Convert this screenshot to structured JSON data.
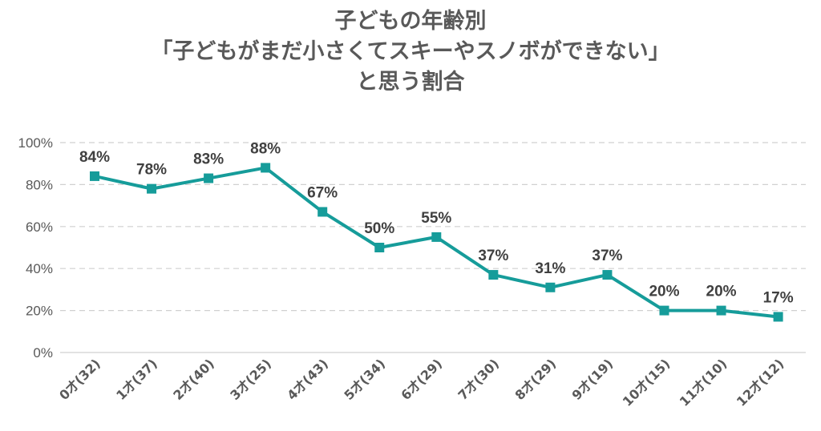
{
  "colors": {
    "series": "#169C9A",
    "grid": "#D0D0D0",
    "text": "#595959",
    "label": "#404040"
  },
  "chart_data": {
    "type": "line",
    "title_lines": [
      "子どもの年齢別",
      "「子どもがまだ小さくてスキーやスノボができない」",
      "と思う割合"
    ],
    "categories": [
      "0才(32)",
      "1才(37)",
      "2才(40)",
      "3才(25)",
      "4才(43)",
      "5才(34)",
      "6才(29)",
      "7才(30)",
      "8才(29)",
      "9才(19)",
      "10才(15)",
      "11才(10)",
      "12才(12)"
    ],
    "values": [
      84,
      78,
      83,
      88,
      67,
      50,
      55,
      37,
      31,
      37,
      20,
      20,
      17
    ],
    "data_labels": [
      "84%",
      "78%",
      "83%",
      "88%",
      "67%",
      "50%",
      "55%",
      "37%",
      "31%",
      "37%",
      "20%",
      "20%",
      "17%"
    ],
    "y_ticks": [
      "0%",
      "20%",
      "40%",
      "60%",
      "80%",
      "100%"
    ],
    "ylim": [
      0,
      100
    ],
    "grid": true,
    "xlabel": "",
    "ylabel": "",
    "marker": "square"
  }
}
